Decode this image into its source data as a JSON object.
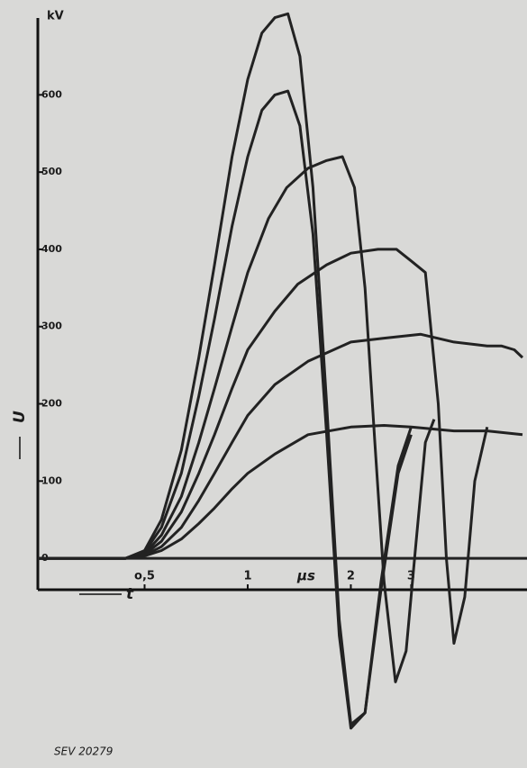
{
  "chart_data": {
    "type": "line",
    "y_unit": "kV",
    "y_label": "U",
    "x_label": "t",
    "x_unit": "μs",
    "caption": "SEV 20279",
    "x_scale": "log",
    "color": "#222222",
    "xlim": [
      0.244,
      6.34
    ],
    "xticks": [
      {
        "value": 0.5,
        "label": "o,5"
      },
      1,
      2,
      3
    ],
    "ylim": [
      -240,
      710
    ],
    "yticks": [
      0,
      100,
      200,
      300,
      400,
      500,
      600
    ],
    "series": [
      {
        "x": [
          0.244,
          0.44,
          0.5,
          0.56,
          0.64,
          0.72,
          0.8,
          0.9,
          1,
          1.1,
          1.2,
          1.31,
          1.42,
          1.55,
          1.7,
          1.85,
          2.0,
          2.2,
          2.45,
          2.75,
          3.0
        ],
        "values": [
          0,
          0,
          10,
          50,
          140,
          260,
          380,
          520,
          620,
          680,
          700,
          705,
          650,
          480,
          200,
          -80,
          -215,
          -200,
          -30,
          120,
          170
        ]
      },
      {
        "x": [
          0.244,
          0.44,
          0.5,
          0.56,
          0.64,
          0.72,
          0.8,
          0.9,
          1,
          1.1,
          1.2,
          1.31,
          1.42,
          1.55,
          1.7,
          1.85,
          2.0,
          2.2,
          2.45,
          2.75,
          3.0
        ],
        "values": [
          0,
          0,
          8,
          40,
          110,
          210,
          310,
          430,
          520,
          580,
          600,
          605,
          560,
          420,
          160,
          -100,
          -220,
          -200,
          -40,
          110,
          160
        ]
      },
      {
        "x": [
          0.244,
          0.44,
          0.5,
          0.56,
          0.64,
          0.72,
          0.8,
          0.9,
          1,
          1.15,
          1.3,
          1.5,
          1.7,
          1.89,
          2.05,
          2.2,
          2.35,
          2.5,
          2.7,
          2.9,
          3.1,
          3.3,
          3.5
        ],
        "values": [
          0,
          0,
          6,
          30,
          80,
          150,
          220,
          300,
          370,
          440,
          480,
          505,
          515,
          520,
          480,
          350,
          150,
          -30,
          -160,
          -120,
          20,
          150,
          180
        ]
      },
      {
        "x": [
          0.244,
          0.44,
          0.5,
          0.56,
          0.64,
          0.72,
          0.8,
          0.9,
          1,
          1.2,
          1.4,
          1.7,
          2.0,
          2.4,
          2.72,
          3.0,
          3.3,
          3.6,
          3.8,
          4.0,
          4.3,
          4.6,
          5.0
        ],
        "values": [
          0,
          0,
          5,
          22,
          60,
          110,
          160,
          220,
          270,
          320,
          355,
          380,
          395,
          400,
          400,
          385,
          370,
          200,
          0,
          -110,
          -50,
          100,
          170
        ]
      },
      {
        "x": [
          0.244,
          0.44,
          0.5,
          0.56,
          0.64,
          0.72,
          0.8,
          0.9,
          1,
          1.2,
          1.5,
          2.0,
          2.5,
          3.2,
          4.0,
          5.0,
          5.5,
          6.0,
          6.34
        ],
        "values": [
          0,
          0,
          4,
          15,
          40,
          75,
          110,
          150,
          185,
          225,
          255,
          280,
          285,
          290,
          280,
          275,
          275,
          270,
          260
        ]
      },
      {
        "x": [
          0.244,
          0.44,
          0.5,
          0.56,
          0.64,
          0.72,
          0.8,
          0.9,
          1,
          1.2,
          1.5,
          2.0,
          2.5,
          3.0,
          4.0,
          5.0,
          6.34
        ],
        "values": [
          0,
          0,
          3,
          10,
          25,
          45,
          65,
          90,
          110,
          135,
          160,
          170,
          172,
          170,
          165,
          165,
          160
        ]
      }
    ]
  }
}
